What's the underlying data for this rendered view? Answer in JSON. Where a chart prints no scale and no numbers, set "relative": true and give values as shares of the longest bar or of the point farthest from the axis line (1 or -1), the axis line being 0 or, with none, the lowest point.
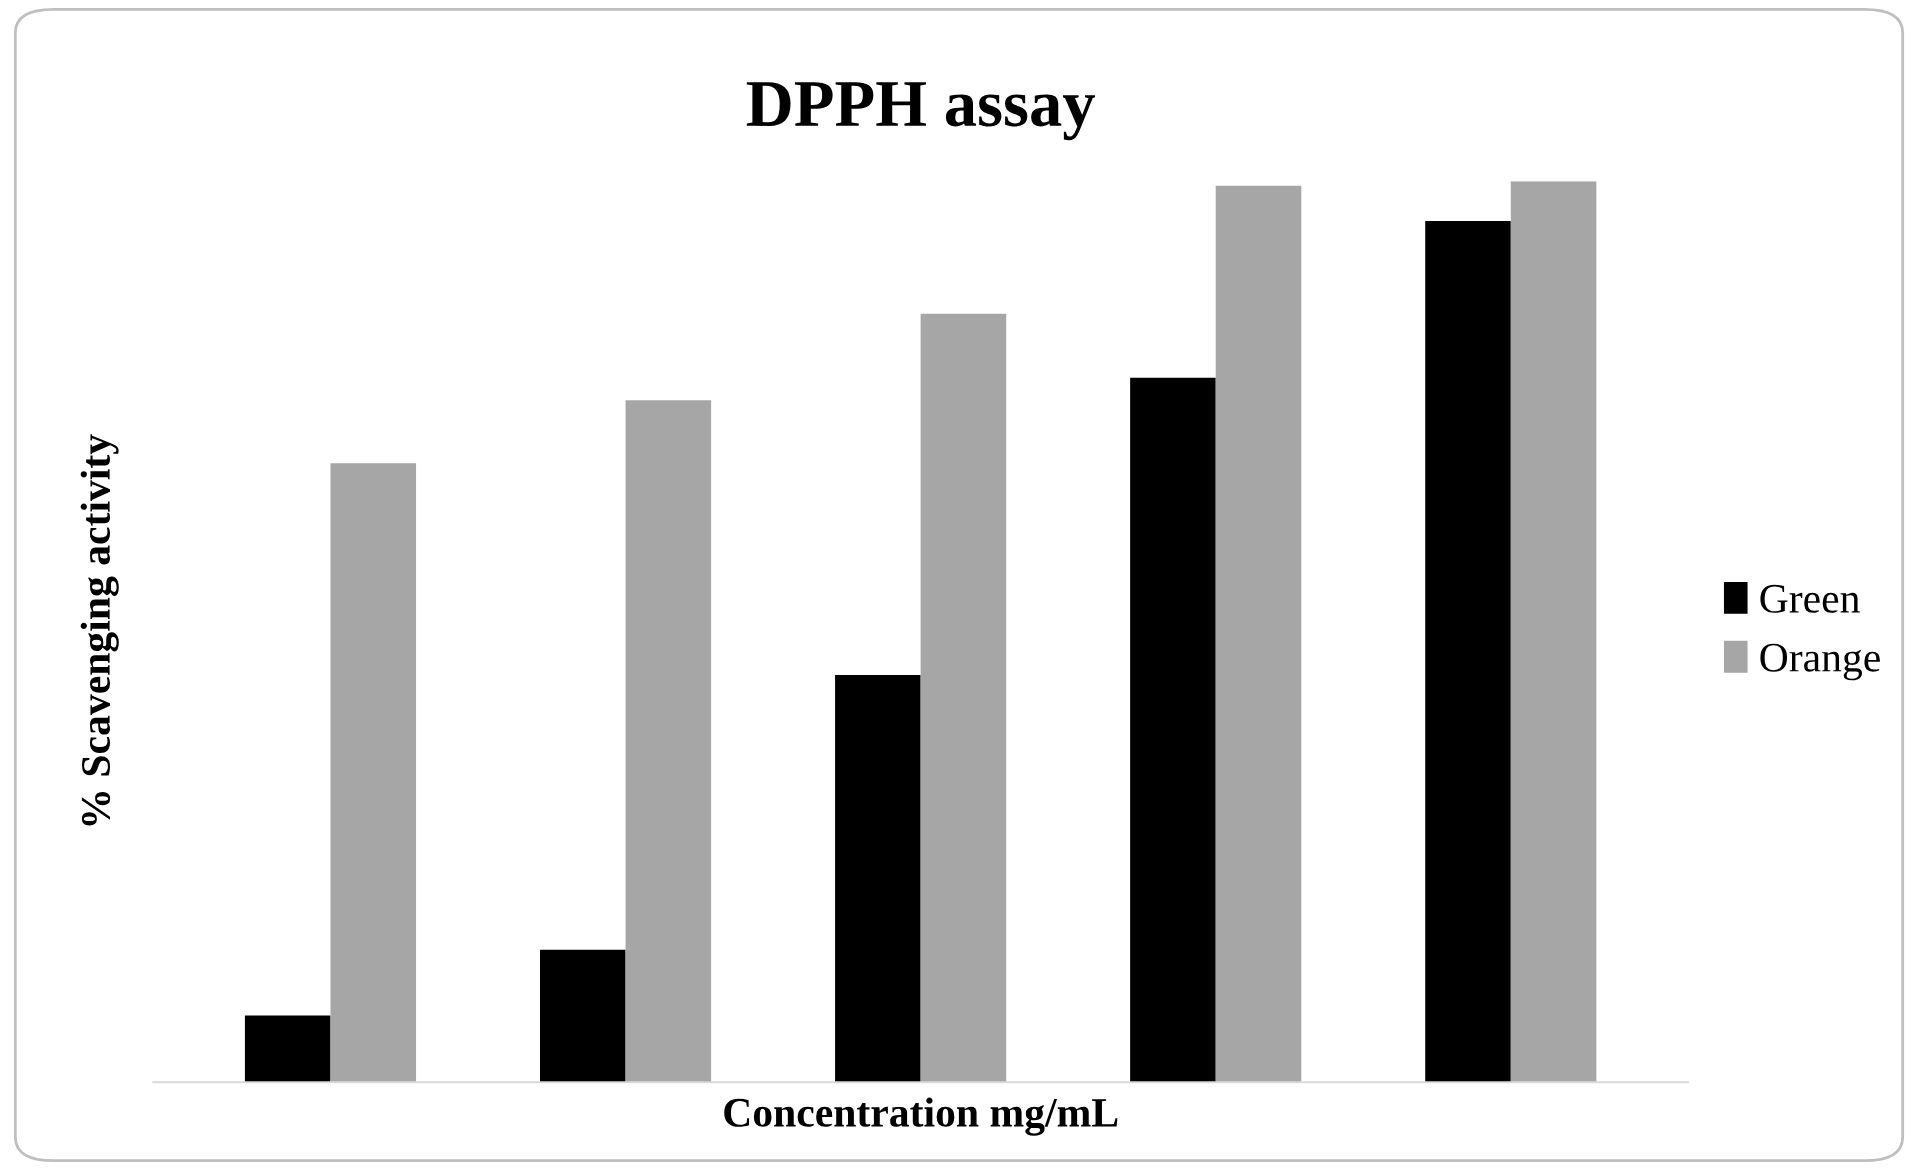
{
  "chart_data": {
    "type": "bar",
    "title": "DPPH assay",
    "xlabel": "Concentration mg/mL",
    "ylabel": "% Scavenging activity",
    "relative": true,
    "categories": [
      null,
      null,
      null,
      null,
      null
    ],
    "series": [
      {
        "name": "Green",
        "color": "#000000",
        "values": [
          0.074,
          0.147,
          0.452,
          0.782,
          0.956
        ]
      },
      {
        "name": "Orange",
        "color": "#a6a6a6",
        "values": [
          0.687,
          0.757,
          0.853,
          0.995,
          1
        ]
      }
    ],
    "legend": "right"
  }
}
